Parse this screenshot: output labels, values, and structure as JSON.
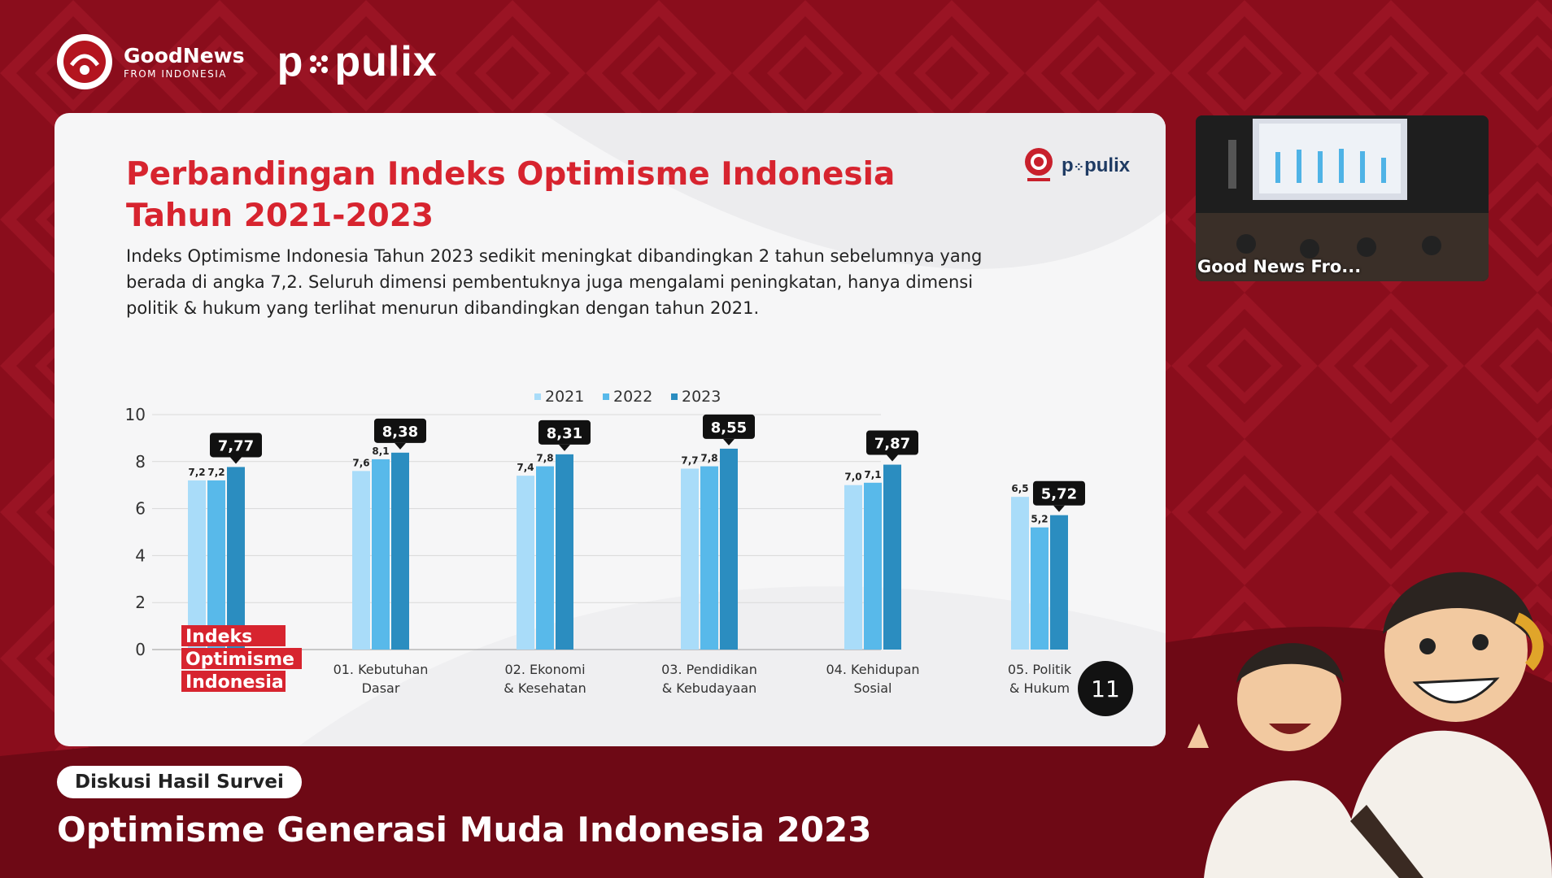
{
  "brand": {
    "goodnews_title": "GoodNews",
    "goodnews_sub": "FROM INDONESIA",
    "populix_a": "p",
    "populix_b": "pulix"
  },
  "slide": {
    "title_line1": "Perbandingan Indeks Optimisme Indonesia",
    "title_line2": "Tahun 2021-2023",
    "description": "Indeks Optimisme Indonesia Tahun 2023 sedikit meningkat dibandingkan 2 tahun sebelumnya yang berada di angka 7,2. Seluruh dimensi pembentuknya juga mengalami peningkatan, hanya dimensi politik & hukum yang terlihat menurun dibandingkan dengan tahun 2021.",
    "logo_populix_a": "p",
    "logo_populix_b": "pulix",
    "page_number": "11"
  },
  "chart_data": {
    "type": "bar",
    "categories": [
      "Indeks Optimisme Indonesia",
      "01. Kebutuhan Dasar",
      "02. Ekonomi & Kesehatan",
      "03. Pendidikan & Kebudayaan",
      "04. Kehidupan Sosial",
      "05. Politik & Hukum"
    ],
    "category_lines": [
      [
        "Indeks",
        "Optimisme",
        "Indonesia"
      ],
      [
        "01. Kebutuhan",
        "Dasar"
      ],
      [
        "02. Ekonomi",
        "& Kesehatan"
      ],
      [
        "03. Pendidikan",
        "& Kebudayaan"
      ],
      [
        "04. Kehidupan",
        "Sosial"
      ],
      [
        "05. Politik",
        "& Hukum"
      ]
    ],
    "series": [
      {
        "name": "2021",
        "color": "#a9dcf9",
        "values": [
          7.2,
          7.6,
          7.4,
          7.7,
          7.0,
          6.5
        ],
        "labels": [
          "7,2",
          "7,6",
          "7,4",
          "7,7",
          "7,0",
          "6,5"
        ]
      },
      {
        "name": "2022",
        "color": "#58b9ea",
        "values": [
          7.2,
          8.1,
          7.8,
          7.8,
          7.1,
          5.2
        ],
        "labels": [
          "7,2",
          "8,1",
          "7,8",
          "7,8",
          "7,1",
          "5,2"
        ]
      },
      {
        "name": "2023",
        "color": "#2b8dc0",
        "values": [
          7.77,
          8.38,
          8.31,
          8.55,
          7.87,
          5.72
        ],
        "labels": [
          "7,77",
          "8,38",
          "8,31",
          "8,55",
          "7,87",
          "5,72"
        ]
      }
    ],
    "yticks": [
      "0",
      "2",
      "4",
      "6",
      "8",
      "10"
    ],
    "ylim": [
      0,
      10
    ],
    "legend_position": "top-center",
    "grid": true
  },
  "video": {
    "label": "Good News Fro..."
  },
  "lower_third": {
    "badge": "Diskusi Hasil Survei",
    "title": "Optimisme Generasi Muda Indonesia 2023"
  }
}
